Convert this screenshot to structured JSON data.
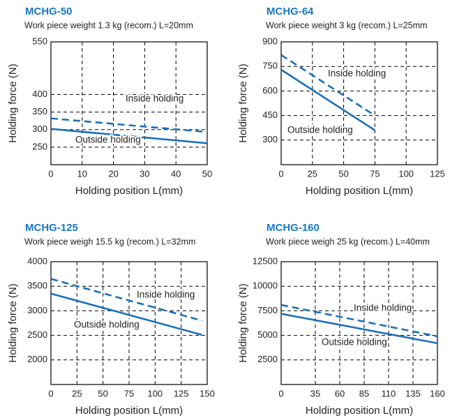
{
  "chart_data": [
    {
      "type": "line",
      "title": "MCHG-50",
      "subtitle": "Work piece weight 1.3 kg (recom.) L=20mm",
      "x_label": "Holding position L(mm)",
      "y_label": "Holding force (N)",
      "x": [
        0,
        50
      ],
      "xlim": [
        0,
        50
      ],
      "xticks": [
        0,
        10,
        20,
        30,
        40,
        50
      ],
      "ylim": [
        200,
        550
      ],
      "yticks": [
        250,
        300,
        350,
        400,
        550
      ],
      "grid": true,
      "series": [
        {
          "name": "Inside holding",
          "color": "#1a6fba",
          "style": "dashed",
          "values": [
            332,
            293
          ]
        },
        {
          "name": "Outside holding",
          "color": "#1a6fba",
          "style": "solid",
          "values": [
            302,
            261
          ]
        }
      ]
    },
    {
      "type": "line",
      "title": "MCHG-64",
      "subtitle": "Work piece weight 3 kg (recom.) L=25mm",
      "x_label": "Holding position L(mm)",
      "y_label": "Holding force (N)",
      "x": [
        0,
        75
      ],
      "xlim": [
        0,
        125
      ],
      "xticks": [
        0,
        25,
        50,
        75,
        100,
        125
      ],
      "ylim": [
        150,
        900
      ],
      "yticks": [
        300,
        450,
        600,
        750,
        900
      ],
      "grid": true,
      "series": [
        {
          "name": "Inside holding",
          "color": "#1a6fba",
          "style": "dashed",
          "values": [
            820,
            450
          ]
        },
        {
          "name": "Outside holding",
          "color": "#1a6fba",
          "style": "solid",
          "values": [
            730,
            360
          ]
        }
      ]
    },
    {
      "type": "line",
      "title": "MCHG-125",
      "subtitle": "Work piece weigh 15.5 kg (recom.) L=32mm",
      "x_label": "Holding position L(mm)",
      "y_label": "Holding force (N)",
      "x": [
        0,
        145
      ],
      "xlim": [
        0,
        150
      ],
      "xticks": [
        0,
        25,
        50,
        75,
        100,
        125,
        150
      ],
      "ylim": [
        1500,
        4000
      ],
      "yticks": [
        2000,
        2500,
        3000,
        3500,
        4000
      ],
      "grid": true,
      "series": [
        {
          "name": "Inside holding",
          "color": "#1a6fba",
          "style": "dashed",
          "values": [
            3650,
            2800
          ]
        },
        {
          "name": "Outside holding",
          "color": "#1a6fba",
          "style": "solid",
          "values": [
            3350,
            2510
          ]
        }
      ]
    },
    {
      "type": "line",
      "title": "MCHG-160",
      "subtitle": "Work piece weigh 25 kg (recom.) L=40mm",
      "x_label": "Holding position L(mm)",
      "y_label": "Holding force (N)",
      "x": [
        0,
        160
      ],
      "xlim": [
        0,
        160
      ],
      "xticks": [
        0,
        35,
        60,
        85,
        110,
        135,
        160
      ],
      "ylim": [
        0,
        12500
      ],
      "yticks": [
        2500,
        5000,
        7500,
        10000,
        12500
      ],
      "grid": true,
      "series": [
        {
          "name": "Inside holding",
          "color": "#1a6fba",
          "style": "dashed",
          "values": [
            8100,
            4900
          ]
        },
        {
          "name": "Outside holding",
          "color": "#1a6fba",
          "style": "solid",
          "values": [
            7200,
            4200
          ]
        }
      ]
    }
  ]
}
